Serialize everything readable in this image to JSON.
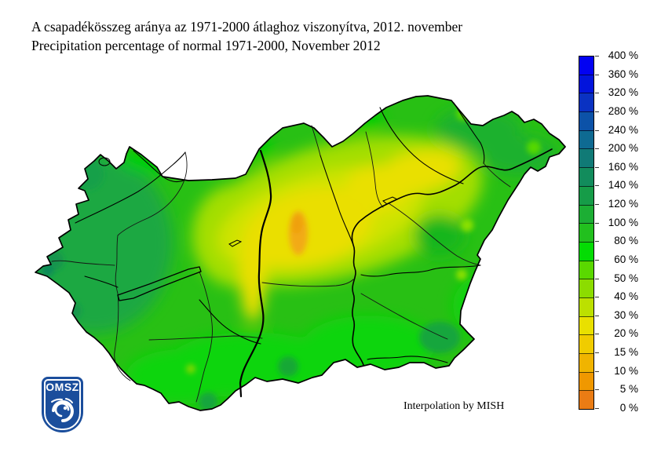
{
  "header": {
    "title_hu": "A csapadékösszeg aránya az 1971-2000 átlaghoz viszonyítva, 2012. november",
    "title_en": "Precipitation percentage of normal 1971-2000, November 2012"
  },
  "attribution": "Interpolation by MISH",
  "logo": {
    "text": "OMSZ",
    "shield_color": "#1b4e9c"
  },
  "legend": {
    "unit": "%",
    "labels": [
      "400 %",
      "360 %",
      "320 %",
      "280 %",
      "240 %",
      "200 %",
      "160 %",
      "140 %",
      "120 %",
      "100 %",
      "80 %",
      "60 %",
      "50 %",
      "40 %",
      "30 %",
      "20 %",
      "15 %",
      "10 %",
      "5 %",
      "0 %"
    ],
    "segment_colors_top_to_bottom": [
      "#0202f2",
      "#0214dc",
      "#0a32c2",
      "#0c52a8",
      "#0e6a92",
      "#107a76",
      "#128c5c",
      "#169c48",
      "#1cae34",
      "#22c01e",
      "#04dc04",
      "#5ad800",
      "#8cdc00",
      "#bce000",
      "#e9e000",
      "#f0cc00",
      "#f0b400",
      "#f09800",
      "#ea7c14"
    ]
  },
  "map_colors": {
    "base_green": "#28c014",
    "dark_green_west": "#1ba843",
    "yellow_center": "#eadf00",
    "orange_minimum": "#f0a818",
    "border_line": "#000000"
  }
}
